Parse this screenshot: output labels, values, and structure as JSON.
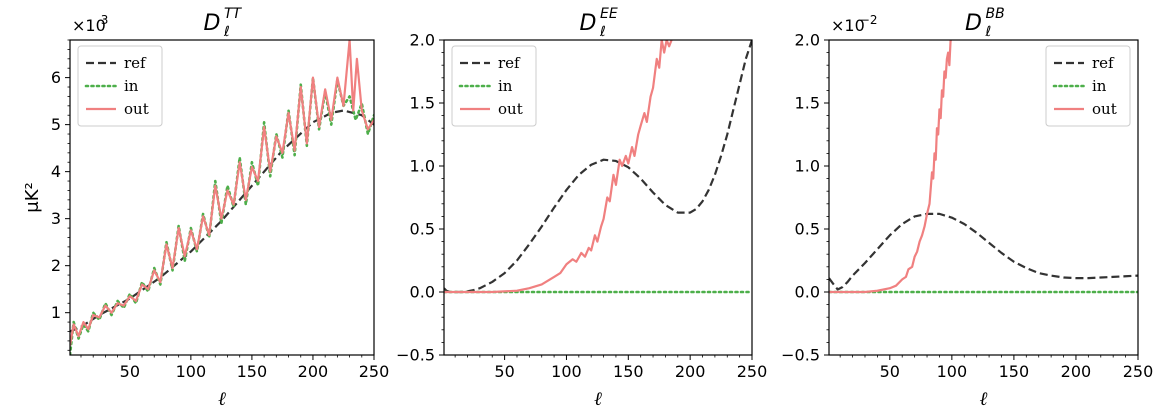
{
  "figure": {
    "ylabel": "μK²"
  },
  "chart_data": [
    {
      "type": "line",
      "title": {
        "base": "D",
        "sub": "ℓ",
        "sup": "TT"
      },
      "xlabel": "ℓ",
      "ylabel": "μK²",
      "y_multiplier": {
        "base": "×10",
        "exp": "3"
      },
      "xlim": [
        1,
        250
      ],
      "ylim": [
        0.1,
        6.8
      ],
      "x_ticks": [
        50,
        100,
        150,
        200,
        250
      ],
      "y_ticks": [
        1,
        2,
        3,
        4,
        5,
        6
      ],
      "legend_position": "top-left",
      "legend": [
        "ref",
        "in",
        "out"
      ],
      "series": [
        {
          "name": "ref",
          "style": "dashed",
          "color": "#333333",
          "x": [
            1,
            10,
            25,
            50,
            75,
            100,
            125,
            150,
            175,
            200,
            215,
            225,
            240,
            250
          ],
          "y": [
            0.6,
            0.7,
            0.95,
            1.3,
            1.75,
            2.3,
            2.95,
            3.7,
            4.45,
            5.05,
            5.25,
            5.3,
            5.2,
            5.0
          ]
        },
        {
          "name": "in",
          "style": "dotted",
          "color": "#4daf4a",
          "x": [
            1,
            4,
            8,
            12,
            16,
            20,
            25,
            30,
            35,
            40,
            45,
            50,
            55,
            60,
            65,
            70,
            75,
            80,
            85,
            90,
            95,
            100,
            105,
            110,
            115,
            120,
            125,
            130,
            135,
            140,
            145,
            150,
            155,
            160,
            165,
            170,
            175,
            180,
            185,
            190,
            195,
            200,
            205,
            210,
            215,
            220,
            225,
            230,
            235,
            240,
            245,
            250
          ],
          "y": [
            0.1,
            0.8,
            0.45,
            0.75,
            0.6,
            1.0,
            0.85,
            1.2,
            0.95,
            1.25,
            1.1,
            1.4,
            1.2,
            1.65,
            1.45,
            1.95,
            1.6,
            2.5,
            1.9,
            2.85,
            2.1,
            2.8,
            2.3,
            3.1,
            2.6,
            3.8,
            2.9,
            3.7,
            3.25,
            4.3,
            3.3,
            4.2,
            3.7,
            5.05,
            3.9,
            4.8,
            4.3,
            5.3,
            4.35,
            5.85,
            4.55,
            6.0,
            4.9,
            5.7,
            5.0,
            5.95,
            5.4,
            5.6,
            5.1,
            5.45,
            4.8,
            5.2
          ]
        },
        {
          "name": "out",
          "style": "solid",
          "color": "#f08080",
          "x": [
            1,
            4,
            8,
            12,
            16,
            20,
            25,
            30,
            35,
            40,
            45,
            50,
            55,
            60,
            65,
            70,
            75,
            80,
            85,
            90,
            95,
            100,
            105,
            110,
            115,
            120,
            125,
            130,
            135,
            140,
            145,
            150,
            155,
            160,
            165,
            170,
            175,
            180,
            185,
            190,
            195,
            200,
            205,
            210,
            215,
            220,
            225,
            230,
            233,
            236,
            240,
            245,
            250
          ],
          "y": [
            0.3,
            0.75,
            0.5,
            0.8,
            0.65,
            0.95,
            0.9,
            1.15,
            1.0,
            1.2,
            1.15,
            1.35,
            1.25,
            1.6,
            1.5,
            1.9,
            1.65,
            2.45,
            1.95,
            2.8,
            2.2,
            2.75,
            2.35,
            3.05,
            2.65,
            3.7,
            3.0,
            3.6,
            3.3,
            4.2,
            3.4,
            4.1,
            3.8,
            4.95,
            4.0,
            4.75,
            4.4,
            5.25,
            4.45,
            5.8,
            4.6,
            6.0,
            4.95,
            5.75,
            5.1,
            6.0,
            5.4,
            6.8,
            5.3,
            6.4,
            5.3,
            4.9,
            5.1
          ]
        }
      ]
    },
    {
      "type": "line",
      "title": {
        "base": "D",
        "sub": "ℓ",
        "sup": "EE"
      },
      "xlabel": "ℓ",
      "ylabel": "",
      "xlim": [
        1,
        250
      ],
      "ylim": [
        -0.5,
        2.0
      ],
      "x_ticks": [
        50,
        100,
        150,
        200,
        250
      ],
      "y_ticks": [
        -0.5,
        0.0,
        0.5,
        1.0,
        1.5,
        2.0
      ],
      "y_tick_labels": [
        "−0.5",
        "0.0",
        "0.5",
        "1.0",
        "1.5",
        "2.0"
      ],
      "legend_position": "top-left",
      "legend": [
        "ref",
        "in",
        "out"
      ],
      "series": [
        {
          "name": "ref",
          "style": "dashed",
          "color": "#333333",
          "x": [
            1,
            3,
            6,
            10,
            15,
            20,
            25,
            30,
            40,
            50,
            60,
            70,
            80,
            90,
            100,
            110,
            120,
            130,
            140,
            150,
            160,
            170,
            180,
            190,
            200,
            205,
            210,
            215,
            220,
            225,
            230,
            235,
            240,
            245,
            250
          ],
          "y": [
            0.03,
            0.01,
            0.0,
            0.0,
            0.0,
            0.005,
            0.015,
            0.03,
            0.08,
            0.15,
            0.25,
            0.38,
            0.52,
            0.67,
            0.81,
            0.93,
            1.01,
            1.05,
            1.04,
            0.99,
            0.9,
            0.79,
            0.69,
            0.63,
            0.63,
            0.66,
            0.72,
            0.81,
            0.93,
            1.08,
            1.25,
            1.45,
            1.65,
            1.85,
            2.0
          ]
        },
        {
          "name": "in",
          "style": "dotted",
          "color": "#4daf4a",
          "x": [
            1,
            250
          ],
          "y": [
            0.0,
            0.0
          ]
        },
        {
          "name": "out",
          "style": "solid",
          "color": "#f08080",
          "x": [
            1,
            40,
            60,
            70,
            80,
            90,
            95,
            100,
            105,
            108,
            112,
            115,
            118,
            120,
            123,
            125,
            128,
            130,
            133,
            135,
            138,
            140,
            143,
            145,
            148,
            150,
            153,
            155,
            158,
            160,
            163,
            165,
            168,
            170,
            173,
            175,
            177,
            179,
            181,
            183,
            185
          ],
          "y": [
            0.0,
            0.0,
            0.01,
            0.03,
            0.06,
            0.12,
            0.15,
            0.22,
            0.26,
            0.24,
            0.31,
            0.28,
            0.35,
            0.33,
            0.45,
            0.4,
            0.52,
            0.58,
            0.75,
            0.72,
            0.93,
            0.85,
            1.05,
            1.0,
            1.08,
            1.02,
            1.15,
            1.08,
            1.25,
            1.32,
            1.42,
            1.35,
            1.55,
            1.62,
            1.85,
            1.78,
            2.0,
            1.9,
            2.0,
            1.95,
            2.0
          ]
        }
      ]
    },
    {
      "type": "line",
      "title": {
        "base": "D",
        "sub": "ℓ",
        "sup": "BB"
      },
      "xlabel": "ℓ",
      "ylabel": "",
      "y_multiplier": {
        "base": "×10",
        "exp": "−2"
      },
      "xlim": [
        1,
        250
      ],
      "ylim": [
        -0.5,
        2.0
      ],
      "x_ticks": [
        50,
        100,
        150,
        200,
        250
      ],
      "y_ticks": [
        -0.5,
        0.0,
        0.5,
        1.0,
        1.5,
        2.0
      ],
      "y_tick_labels": [
        "−0.5",
        "0.0",
        "0.5",
        "1.0",
        "1.5",
        "2.0"
      ],
      "legend_position": "top-right",
      "legend": [
        "ref",
        "in",
        "out"
      ],
      "series": [
        {
          "name": "ref",
          "style": "dashed",
          "color": "#333333",
          "x": [
            1,
            4,
            8,
            12,
            16,
            20,
            30,
            40,
            50,
            60,
            70,
            80,
            90,
            100,
            110,
            120,
            130,
            140,
            150,
            160,
            170,
            180,
            190,
            200,
            210,
            220,
            230,
            240,
            250
          ],
          "y": [
            0.11,
            0.07,
            0.02,
            0.04,
            0.08,
            0.13,
            0.23,
            0.34,
            0.45,
            0.54,
            0.6,
            0.62,
            0.62,
            0.59,
            0.54,
            0.47,
            0.39,
            0.31,
            0.24,
            0.19,
            0.15,
            0.13,
            0.115,
            0.11,
            0.11,
            0.115,
            0.12,
            0.125,
            0.13
          ]
        },
        {
          "name": "in",
          "style": "dotted",
          "color": "#4daf4a",
          "x": [
            1,
            250
          ],
          "y": [
            0.0,
            0.0
          ]
        },
        {
          "name": "out",
          "style": "solid",
          "color": "#f08080",
          "x": [
            1,
            30,
            40,
            50,
            55,
            60,
            63,
            65,
            68,
            70,
            72,
            74,
            76,
            78,
            80,
            82,
            84,
            85,
            86,
            87,
            88,
            89,
            90,
            91,
            92,
            93,
            94,
            95,
            96,
            97,
            98,
            99,
            100
          ],
          "y": [
            0.0,
            0.0,
            0.01,
            0.03,
            0.05,
            0.1,
            0.12,
            0.18,
            0.2,
            0.28,
            0.32,
            0.4,
            0.45,
            0.52,
            0.62,
            0.7,
            0.95,
            0.9,
            1.1,
            1.05,
            1.3,
            1.25,
            1.45,
            1.38,
            1.6,
            1.55,
            1.75,
            1.7,
            1.85,
            1.9,
            1.8,
            2.0,
            2.0
          ]
        }
      ]
    }
  ]
}
